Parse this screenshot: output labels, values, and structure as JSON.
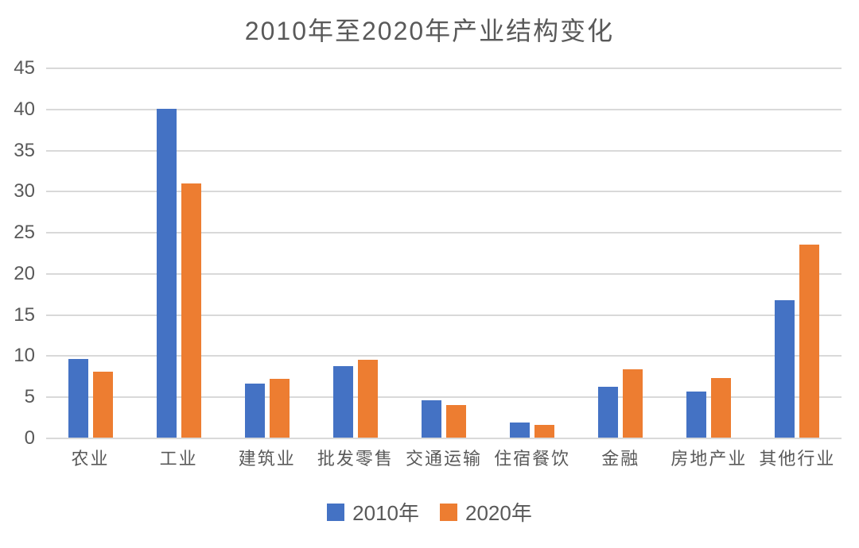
{
  "chart_data": {
    "type": "bar",
    "title": "2010年至2020年产业结构变化",
    "categories": [
      "农业",
      "工业",
      "建筑业",
      "批发零售",
      "交通运输",
      "住宿餐饮",
      "金融",
      "房地产业",
      "其他行业"
    ],
    "series": [
      {
        "name": "2010年",
        "color": "#4472C4",
        "values": [
          9.6,
          40,
          6.6,
          8.7,
          4.5,
          1.8,
          6.2,
          5.6,
          16.7
        ]
      },
      {
        "name": "2020年",
        "color": "#ED7D31",
        "values": [
          8.0,
          30.9,
          7.1,
          9.5,
          4.0,
          1.5,
          8.3,
          7.2,
          23.5
        ]
      }
    ],
    "xlabel": "",
    "ylabel": "",
    "ylim": [
      0,
      45
    ],
    "ytick_step": 5,
    "ytick_labels": [
      "0",
      "5",
      "10",
      "15",
      "20",
      "25",
      "30",
      "35",
      "40",
      "45"
    ],
    "grid": true,
    "legend_position": "bottom",
    "colors": {
      "text": "#595959",
      "gridline": "#D9D9D9",
      "background": "#FFFFFF"
    }
  }
}
